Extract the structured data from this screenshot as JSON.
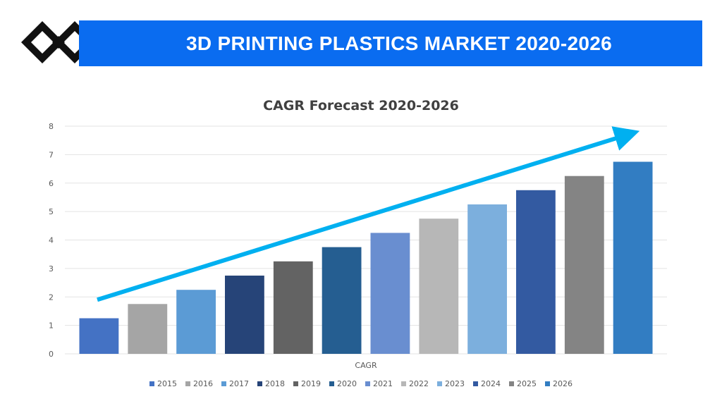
{
  "header": {
    "title": "3D PRINTING PLASTICS MARKET 2020-2026",
    "logo_icon": "diamond-logo-icon",
    "banner_color": "#0a6cf0"
  },
  "chart_data": {
    "type": "bar",
    "title": "CAGR Forecast 2020-2026",
    "categories": [
      "CAGR"
    ],
    "xlabel": "CAGR",
    "ylabel": "",
    "ylim": [
      0,
      8
    ],
    "yticks": [
      "0",
      "1",
      "2",
      "3",
      "4",
      "5",
      "6",
      "7",
      "8"
    ],
    "grid": true,
    "legend_position": "bottom",
    "series": [
      {
        "name": "2015",
        "values": [
          1.25
        ],
        "color": "#4472c4"
      },
      {
        "name": "2016",
        "values": [
          1.75
        ],
        "color": "#a5a5a5"
      },
      {
        "name": "2017",
        "values": [
          2.25
        ],
        "color": "#5b9bd5"
      },
      {
        "name": "2018",
        "values": [
          2.75
        ],
        "color": "#264478"
      },
      {
        "name": "2019",
        "values": [
          3.25
        ],
        "color": "#636363"
      },
      {
        "name": "2020",
        "values": [
          3.75
        ],
        "color": "#255e91"
      },
      {
        "name": "2021",
        "values": [
          4.25
        ],
        "color": "#698ed0"
      },
      {
        "name": "2022",
        "values": [
          4.75
        ],
        "color": "#b7b7b7"
      },
      {
        "name": "2023",
        "values": [
          5.25
        ],
        "color": "#7cafdd"
      },
      {
        "name": "2024",
        "values": [
          5.75
        ],
        "color": "#335aa1"
      },
      {
        "name": "2025",
        "values": [
          6.25
        ],
        "color": "#848484"
      },
      {
        "name": "2026",
        "values": [
          6.75
        ],
        "color": "#327dc2"
      }
    ],
    "trend_arrow_color": "#00b0f0"
  }
}
